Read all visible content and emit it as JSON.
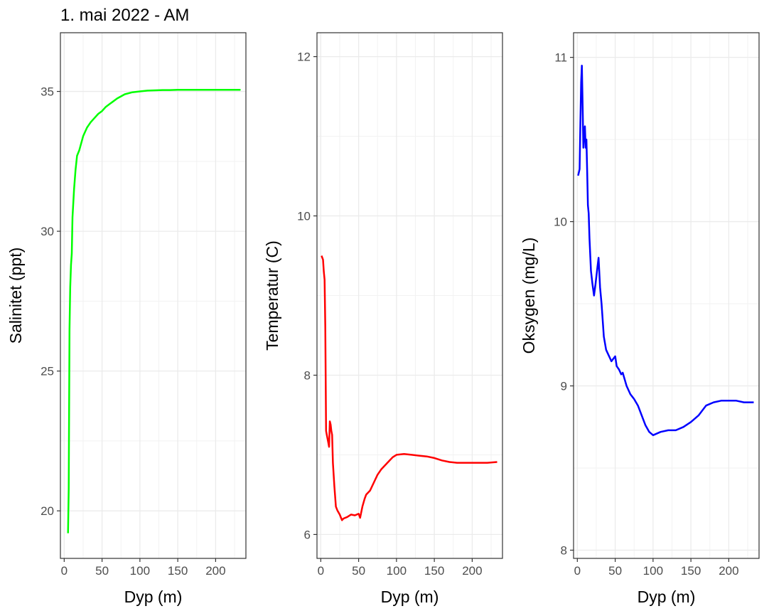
{
  "title": "1. mai 2022 - AM",
  "chart_data": [
    {
      "type": "line",
      "xlabel": "Dyp (m)",
      "ylabel": "Salinitet (ppt)",
      "xlim": [
        -5,
        240
      ],
      "ylim": [
        18.3,
        37.1
      ],
      "xticks": [
        0,
        50,
        100,
        150,
        200
      ],
      "yticks": [
        20,
        25,
        30,
        35
      ],
      "grid": true,
      "color": "#00ff00",
      "x": [
        5,
        6,
        7,
        8,
        9,
        10,
        11,
        12,
        13,
        15,
        17,
        20,
        25,
        30,
        35,
        40,
        45,
        50,
        55,
        60,
        65,
        70,
        80,
        90,
        100,
        110,
        120,
        130,
        140,
        150,
        160,
        180,
        200,
        220,
        233
      ],
      "y": [
        19.2,
        20.8,
        26.5,
        28.0,
        28.8,
        29.2,
        30.5,
        31.0,
        31.5,
        32.2,
        32.7,
        32.9,
        33.4,
        33.7,
        33.9,
        34.05,
        34.2,
        34.3,
        34.45,
        34.55,
        34.65,
        34.75,
        34.9,
        34.97,
        35.0,
        35.03,
        35.04,
        35.05,
        35.05,
        35.06,
        35.06,
        35.06,
        35.06,
        35.06,
        35.06
      ]
    },
    {
      "type": "line",
      "xlabel": "Dyp (m)",
      "ylabel": "Temperatur (C)",
      "xlim": [
        -5,
        240
      ],
      "ylim": [
        5.7,
        12.3
      ],
      "xticks": [
        0,
        50,
        100,
        150,
        200
      ],
      "yticks": [
        6,
        8,
        10,
        12
      ],
      "grid": true,
      "color": "#ff0000",
      "x": [
        1,
        3,
        4,
        5,
        6,
        7,
        8,
        10,
        11,
        12,
        13,
        14,
        15,
        16,
        18,
        20,
        22,
        25,
        28,
        30,
        35,
        40,
        45,
        50,
        52,
        55,
        58,
        60,
        65,
        70,
        75,
        80,
        85,
        90,
        95,
        100,
        110,
        120,
        130,
        140,
        150,
        160,
        170,
        180,
        190,
        200,
        210,
        220,
        233
      ],
      "y": [
        9.5,
        9.45,
        9.3,
        9.2,
        8.6,
        7.3,
        7.25,
        7.15,
        7.1,
        7.42,
        7.38,
        7.3,
        7.25,
        6.9,
        6.6,
        6.35,
        6.3,
        6.25,
        6.18,
        6.2,
        6.22,
        6.25,
        6.24,
        6.26,
        6.21,
        6.35,
        6.45,
        6.5,
        6.55,
        6.65,
        6.75,
        6.82,
        6.87,
        6.92,
        6.97,
        7.0,
        7.01,
        7.0,
        6.99,
        6.98,
        6.96,
        6.93,
        6.91,
        6.9,
        6.9,
        6.9,
        6.9,
        6.9,
        6.91
      ]
    },
    {
      "type": "line",
      "xlabel": "Dyp (m)",
      "ylabel": "Oksygen (mg/L)",
      "xlim": [
        -5,
        240
      ],
      "ylim": [
        7.95,
        11.15
      ],
      "xticks": [
        0,
        50,
        100,
        150,
        200
      ],
      "yticks": [
        8,
        9,
        10,
        11
      ],
      "grid": true,
      "color": "#0000ff",
      "x": [
        1,
        2,
        3,
        4,
        5,
        6,
        7,
        8,
        9,
        10,
        11,
        12,
        13,
        14,
        15,
        16,
        18,
        20,
        22,
        24,
        26,
        28,
        30,
        32,
        35,
        38,
        40,
        45,
        50,
        52,
        55,
        58,
        60,
        65,
        70,
        75,
        80,
        85,
        90,
        95,
        100,
        110,
        120,
        130,
        140,
        150,
        160,
        170,
        180,
        190,
        200,
        210,
        220,
        233
      ],
      "y": [
        10.28,
        10.3,
        10.32,
        10.6,
        10.85,
        10.95,
        10.7,
        10.45,
        10.55,
        10.58,
        10.45,
        10.5,
        10.3,
        10.1,
        10.05,
        9.9,
        9.7,
        9.62,
        9.55,
        9.62,
        9.7,
        9.78,
        9.6,
        9.5,
        9.3,
        9.22,
        9.2,
        9.15,
        9.18,
        9.12,
        9.1,
        9.07,
        9.08,
        9.0,
        8.95,
        8.92,
        8.88,
        8.82,
        8.76,
        8.72,
        8.7,
        8.72,
        8.73,
        8.73,
        8.75,
        8.78,
        8.82,
        8.88,
        8.9,
        8.91,
        8.91,
        8.91,
        8.9,
        8.9
      ]
    }
  ]
}
